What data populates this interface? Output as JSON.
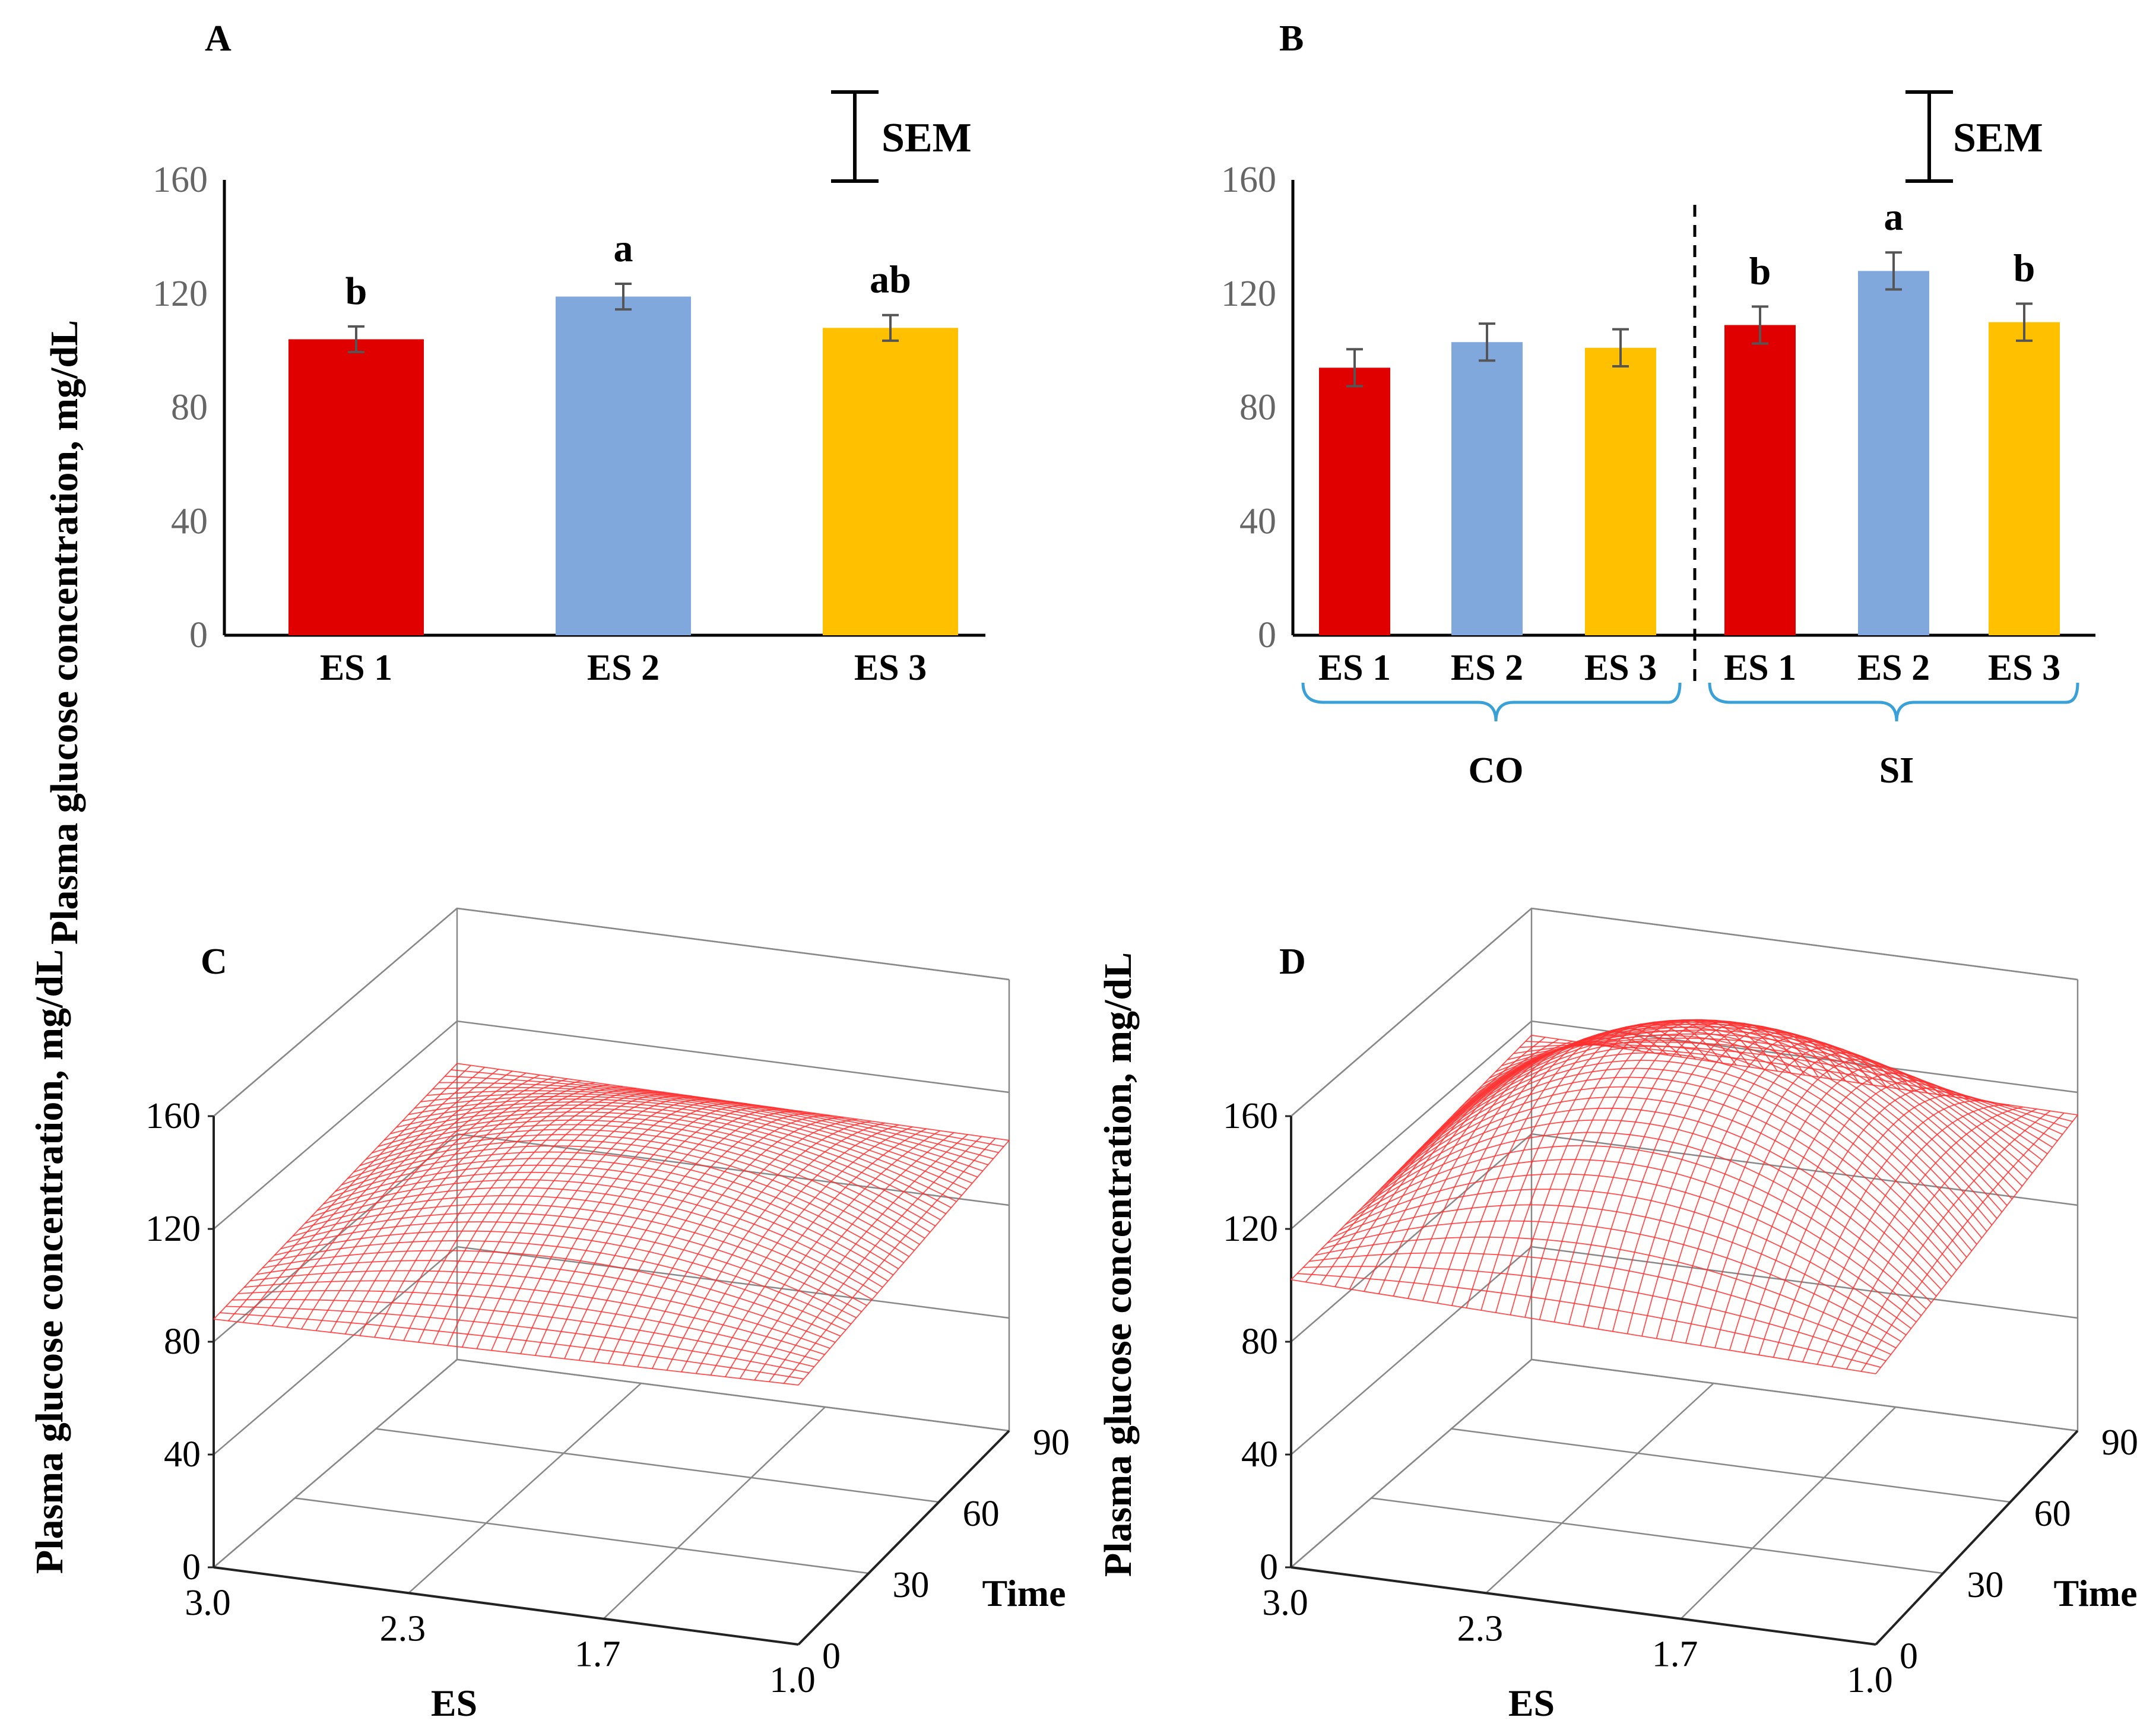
{
  "y_axis_label": "Plasma glucose concentration,  mg/dL",
  "sem_label": "SEM",
  "colors": {
    "es1": "#e00000",
    "es2": "#80a8dc",
    "es3": "#ffc000",
    "brace": "#3aa0d8",
    "mesh": "#ff3030",
    "grid": "#888888"
  },
  "chart_data": [
    {
      "panel": "A",
      "type": "bar",
      "categories": [
        "ES 1",
        "ES 2",
        "ES 3"
      ],
      "values": [
        104,
        119,
        108
      ],
      "errors": [
        4.5,
        4.5,
        4.5
      ],
      "significance": [
        "b",
        "a",
        "ab"
      ],
      "ylim": [
        0,
        160
      ],
      "yticks": [
        "0",
        "40",
        "80",
        "120",
        "160"
      ],
      "ylabel": "Plasma glucose concentration,  mg/dL"
    },
    {
      "panel": "B",
      "type": "bar",
      "categories": [
        "ES 1",
        "ES 2",
        "ES 3",
        "ES 1",
        "ES 2",
        "ES 3"
      ],
      "groups": [
        {
          "name": "CO",
          "values": [
            94,
            103,
            101
          ]
        },
        {
          "name": "SI",
          "values": [
            109,
            128,
            110
          ]
        }
      ],
      "values": [
        94,
        103,
        101,
        109,
        128,
        110
      ],
      "errors": [
        6.5,
        6.5,
        6.5,
        6.5,
        6.5,
        6.5
      ],
      "significance": [
        "",
        "",
        "",
        "b",
        "a",
        "b"
      ],
      "ylim": [
        0,
        160
      ],
      "yticks": [
        "0",
        "40",
        "80",
        "120",
        "160"
      ],
      "ylabel": "Plasma glucose concentration,  mg/dL"
    },
    {
      "panel": "C",
      "type": "surface",
      "x_label": "ES",
      "y_label": "Time",
      "z_label": "Plasma glucose concentration,  mg/dL",
      "es_ticks": [
        "3.0",
        "2.3",
        "1.7",
        "1.0"
      ],
      "time_ticks": [
        "0",
        "30",
        "60",
        "90"
      ],
      "z_ticks": [
        "0",
        "40",
        "80",
        "120",
        "160"
      ],
      "es_range": [
        3.0,
        1.0
      ],
      "time_range": [
        0,
        90
      ],
      "zlim": [
        0,
        160
      ],
      "corner_values": {
        "es3_t0": 88,
        "es1_t0": 92,
        "es3_t90": 105,
        "es1_t90": 103
      },
      "peak_value": 122
    },
    {
      "panel": "D",
      "type": "surface",
      "x_label": "ES",
      "y_label": "Time",
      "z_label": "Plasma glucose concentration,  mg/dL",
      "es_ticks": [
        "3.0",
        "2.3",
        "1.7",
        "1.0"
      ],
      "time_ticks": [
        "0",
        "30",
        "60",
        "90"
      ],
      "z_ticks": [
        "0",
        "40",
        "80",
        "120",
        "160"
      ],
      "es_range": [
        3.0,
        1.0
      ],
      "time_range": [
        0,
        90
      ],
      "zlim": [
        0,
        160
      ],
      "corner_values": {
        "es3_t0": 102,
        "es1_t0": 96,
        "es3_t90": 115,
        "es1_t90": 112
      },
      "peak_value": 160
    }
  ]
}
